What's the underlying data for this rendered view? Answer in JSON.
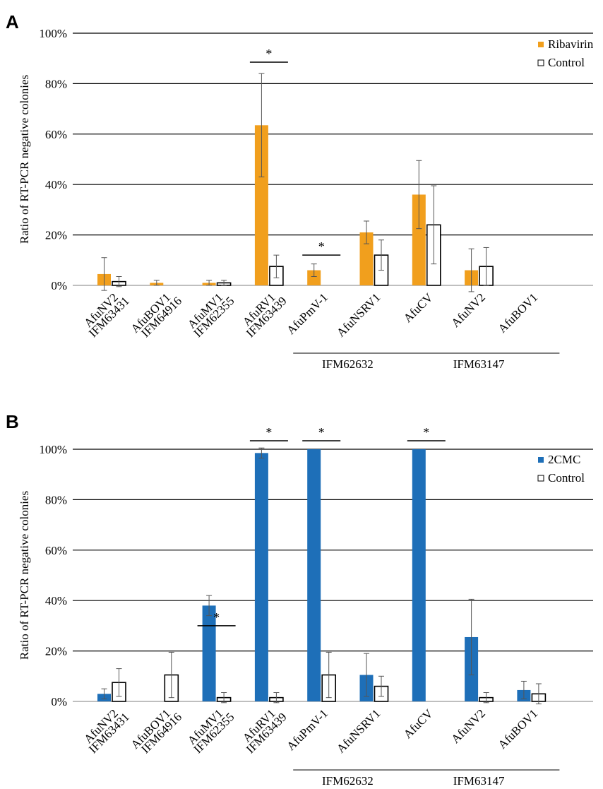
{
  "chart_data": [
    {
      "panel": "A",
      "type": "bar",
      "ylabel": "Ratio of RT-PCR negative colonies",
      "ylim": [
        0,
        100
      ],
      "yticks": [
        "0%",
        "20%",
        "40%",
        "60%",
        "80%",
        "100%"
      ],
      "categories": [
        [
          "AfuNV2",
          "IFM63431"
        ],
        [
          "AfuBOV1",
          "IFM64916"
        ],
        [
          "AfuMV1",
          "IFM62355"
        ],
        [
          "AfuRV1",
          "IFM63439"
        ],
        [
          "AfuPmV-1"
        ],
        [
          "AfuNSRV1"
        ],
        [
          "AfuCV"
        ],
        [
          "AfuNV2"
        ],
        [
          "AfuBOV1"
        ]
      ],
      "groups": [
        {
          "label": "IFM62632",
          "from": 4,
          "to": 5
        },
        {
          "label": "IFM63147",
          "from": 6,
          "to": 8
        }
      ],
      "series": [
        {
          "name": "Ribavirin",
          "color": "#F19F1D",
          "values": [
            4.5,
            1,
            1,
            63.5,
            6,
            21,
            36,
            6,
            0
          ],
          "errors": [
            6.5,
            1,
            1,
            20.5,
            2.5,
            4.5,
            13.5,
            8.5,
            0
          ]
        },
        {
          "name": "Control",
          "color": "#ffffff",
          "values": [
            1.5,
            0,
            1,
            7.5,
            0,
            12,
            24,
            7.5,
            0
          ],
          "errors": [
            2,
            0,
            1,
            4.5,
            0,
            6,
            15.5,
            7.5,
            0
          ]
        }
      ],
      "significance": [
        {
          "category": 3,
          "label": "*"
        },
        {
          "category": 4,
          "label": "*"
        }
      ]
    },
    {
      "panel": "B",
      "type": "bar",
      "ylabel": "Ratio of RT-PCR negative colonies",
      "ylim": [
        0,
        100
      ],
      "yticks": [
        "0%",
        "20%",
        "40%",
        "60%",
        "80%",
        "100%"
      ],
      "categories": [
        [
          "AfuNV2",
          "IFM63431"
        ],
        [
          "AfuBOV1",
          "IFM64916"
        ],
        [
          "AfuMV1",
          "IFM62355"
        ],
        [
          "AfuRV1",
          "IFM63439"
        ],
        [
          "AfuPmV-1"
        ],
        [
          "AfuNSRV1"
        ],
        [
          "AfuCV"
        ],
        [
          "AfuNV2"
        ],
        [
          "AfuBOV1"
        ]
      ],
      "groups": [
        {
          "label": "IFM62632",
          "from": 4,
          "to": 5
        },
        {
          "label": "IFM63147",
          "from": 6,
          "to": 8
        }
      ],
      "series": [
        {
          "name": "2CMC",
          "color": "#1E6FB8",
          "values": [
            3,
            0,
            38,
            98.5,
            100,
            10.5,
            100,
            25.5,
            4.5
          ],
          "errors": [
            2,
            0,
            4,
            2,
            0,
            8.5,
            0,
            15,
            3.5
          ]
        },
        {
          "name": "Control",
          "color": "#ffffff",
          "values": [
            7.5,
            10.5,
            1.5,
            1.5,
            10.5,
            6,
            0,
            1.5,
            3
          ],
          "errors": [
            5.5,
            9,
            2,
            2,
            9,
            4,
            0,
            2,
            4
          ]
        }
      ],
      "significance": [
        {
          "category": 2,
          "label": "*"
        },
        {
          "category": 3,
          "label": "*"
        },
        {
          "category": 4,
          "label": "*"
        },
        {
          "category": 6,
          "label": "*"
        }
      ]
    }
  ]
}
